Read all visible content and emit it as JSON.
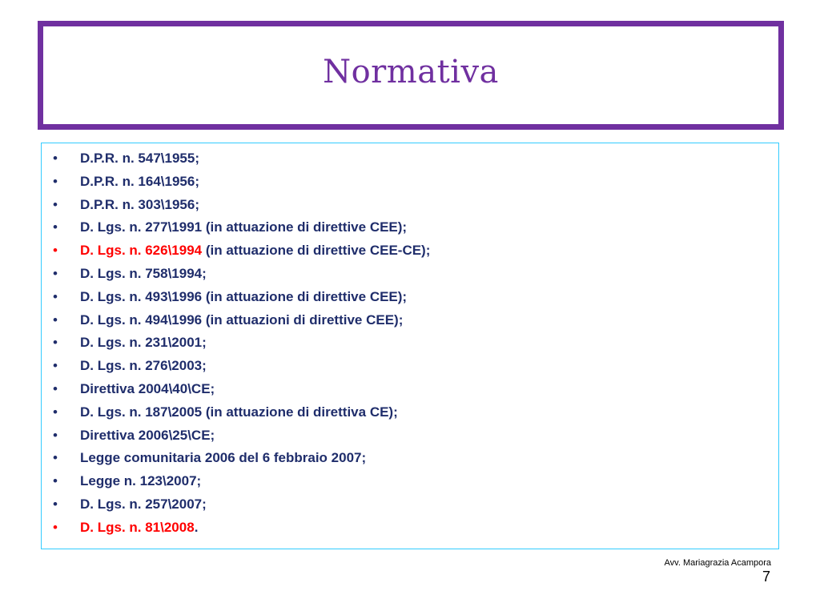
{
  "title": "Normativa",
  "items": [
    {
      "bullet": "•",
      "red_part": "",
      "text": "D.P.R. n. 547\\1955;"
    },
    {
      "bullet": "•",
      "red_part": "",
      "text": "D.P.R. n. 164\\1956;"
    },
    {
      "bullet": "•",
      "red_part": "",
      "text": "D.P.R. n. 303\\1956;"
    },
    {
      "bullet": "•",
      "red_part": "",
      "text": "D. Lgs. n. 277\\1991 (in attuazione di direttive CEE);"
    },
    {
      "bullet": "•",
      "red_part": "D. Lgs. n. 626\\1994",
      "text": " (in attuazione di direttive CEE-CE);"
    },
    {
      "bullet": "•",
      "red_part": "",
      "text": "D. Lgs. n. 758\\1994;"
    },
    {
      "bullet": "•",
      "red_part": "",
      "text": "D. Lgs. n. 493\\1996 (in attuazione di direttive CEE);"
    },
    {
      "bullet": "•",
      "red_part": "",
      "text": "D. Lgs. n. 494\\1996 (in attuazioni di direttive CEE);"
    },
    {
      "bullet": "•",
      "red_part": "",
      "text": "D. Lgs. n. 231\\2001;"
    },
    {
      "bullet": "•",
      "red_part": "",
      "text": "D. Lgs. n. 276\\2003;"
    },
    {
      "bullet": "•",
      "red_part": "",
      "text": "Direttiva 2004\\40\\CE;"
    },
    {
      "bullet": "•",
      "red_part": "",
      "text": "D. Lgs. n. 187\\2005 (in attuazione di direttiva CE);"
    },
    {
      "bullet": "•",
      "red_part": "",
      "text": "Direttiva 2006\\25\\CE;"
    },
    {
      "bullet": "•",
      "red_part": "",
      "text": "Legge comunitaria 2006 del 6 febbraio 2007;"
    },
    {
      "bullet": "•",
      "red_part": "",
      "text": "Legge n. 123\\2007;"
    },
    {
      "bullet": "•",
      "red_part": "",
      "text": "D. Lgs. n. 257\\2007;"
    },
    {
      "bullet": "•",
      "red_part": "D. Lgs. n. 81\\2008",
      "text": "."
    }
  ],
  "footer": {
    "author": "Avv. Mariagrazia Acampora",
    "page_number": "7"
  },
  "colors": {
    "title_border": "#7030a0",
    "title_text": "#7030a0",
    "body_text": "#1f2d6b",
    "highlight": "#ff0000",
    "content_border": "#33ccff"
  }
}
